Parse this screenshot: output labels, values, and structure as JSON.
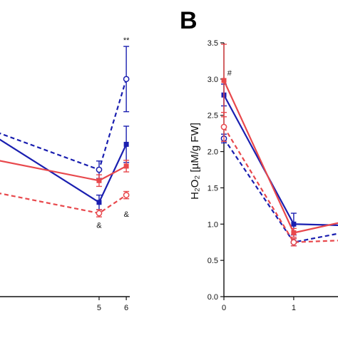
{
  "colors": {
    "blue": "#1a1fb0",
    "red": "#e8484c",
    "axis": "#111111"
  },
  "chart_data": [
    {
      "type": "line",
      "panel_label": "",
      "x_tick_labels": [
        "5",
        "6"
      ],
      "xlim": [
        1.2,
        6.6
      ],
      "ylim": [
        0,
        3.5
      ],
      "series": [
        {
          "style": "solid",
          "color": "#1a1fb0",
          "marker": "filled-square",
          "x": [
            1,
            5,
            6
          ],
          "y": [
            2.25,
            1.3,
            2.1
          ],
          "err": [
            0,
            0.1,
            0.25
          ]
        },
        {
          "style": "dashed",
          "color": "#1a1fb0",
          "marker": "open-circle",
          "x": [
            1,
            5,
            6
          ],
          "y": [
            2.3,
            1.75,
            3.0
          ],
          "err": [
            0,
            0.12,
            0.45
          ]
        },
        {
          "style": "solid",
          "color": "#e8484c",
          "marker": "filled-square",
          "x": [
            1,
            5,
            6
          ],
          "y": [
            1.9,
            1.6,
            1.8
          ],
          "err": [
            0,
            0.08,
            0.08
          ]
        },
        {
          "style": "dashed",
          "color": "#e8484c",
          "marker": "open-circle",
          "x": [
            1,
            5,
            6
          ],
          "y": [
            1.45,
            1.15,
            1.4
          ],
          "err": [
            0,
            0.05,
            0.05
          ]
        }
      ],
      "annotations": [
        {
          "text": "**",
          "x": 6,
          "y": 3.5
        },
        {
          "text": "&",
          "x": 5,
          "y": 0.95
        },
        {
          "text": "&",
          "x": 6,
          "y": 1.1
        }
      ]
    },
    {
      "type": "line",
      "panel_label": "B",
      "ylabel": "H₂O₂ [µM/g FW]",
      "y_tick_labels": [
        "0.0",
        "0.5",
        "1.0",
        "1.5",
        "2.0",
        "2.5",
        "3.0",
        "3.5"
      ],
      "x_tick_labels": [
        "0",
        "1"
      ],
      "xlim": [
        0,
        1.9
      ],
      "ylim": [
        0,
        3.5
      ],
      "series": [
        {
          "style": "solid",
          "color": "#1a1fb0",
          "marker": "filled-square",
          "x": [
            0,
            1,
            1.8
          ],
          "y": [
            2.78,
            1.0,
            0.98
          ],
          "err": [
            0.15,
            0.15,
            0
          ]
        },
        {
          "style": "dashed",
          "color": "#1a1fb0",
          "marker": "open-circle",
          "x": [
            0,
            1,
            1.8
          ],
          "y": [
            2.18,
            0.75,
            0.9
          ],
          "err": [
            0.06,
            0.05,
            0
          ]
        },
        {
          "style": "solid",
          "color": "#e8484c",
          "marker": "filled-square",
          "x": [
            0,
            1,
            1.8
          ],
          "y": [
            2.98,
            0.88,
            1.05
          ],
          "err": [
            0.5,
            0.06,
            0
          ]
        },
        {
          "style": "dashed",
          "color": "#e8484c",
          "marker": "open-circle",
          "x": [
            0,
            1,
            1.8
          ],
          "y": [
            2.34,
            0.75,
            0.78
          ],
          "err": [
            0.2,
            0.05,
            0
          ]
        }
      ],
      "annotations": [
        {
          "text": "#",
          "x": 0.08,
          "y": 3.05
        }
      ]
    }
  ]
}
